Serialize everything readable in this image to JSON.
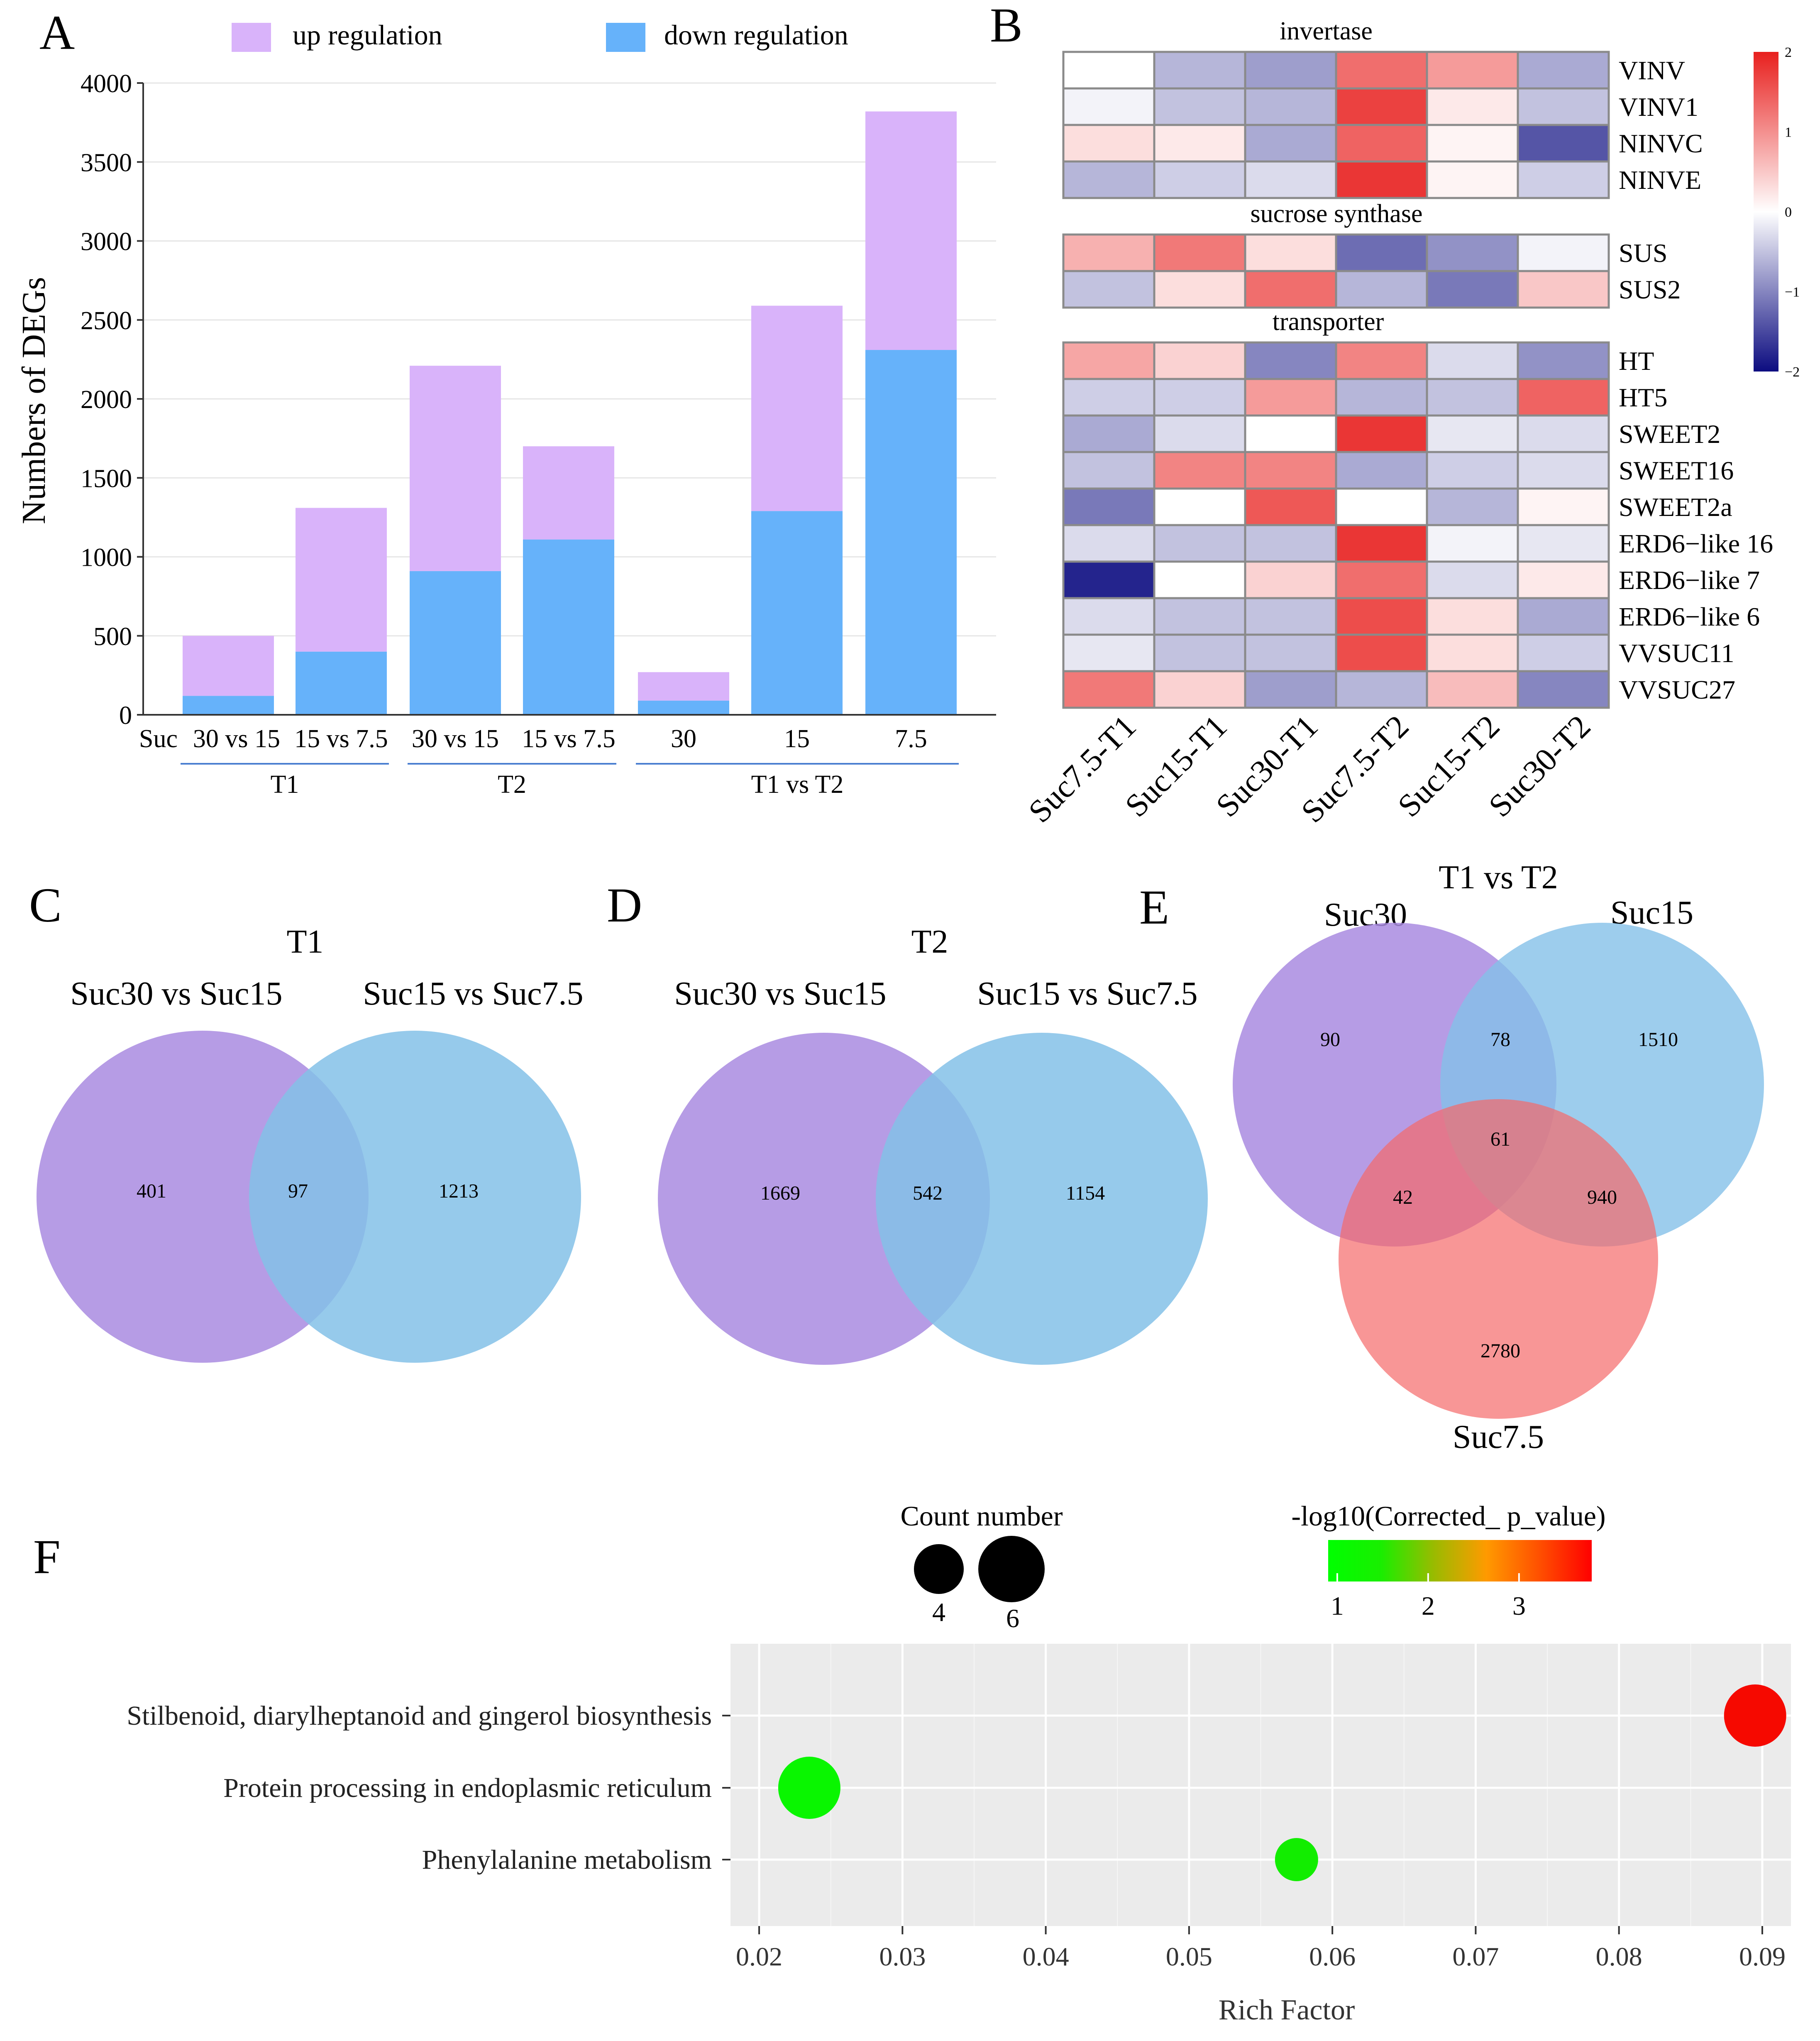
{
  "colors": {
    "up": "#d9b3fa",
    "down": "#66b2fa",
    "venn_purple": "#a98be0",
    "venn_blue": "#84c1e8",
    "venn_red": "#f56a6a",
    "heat_low": "#0c0c80",
    "heat_mid": "#ffffff",
    "heat_high": "#e8201e",
    "panel_bg": "#ebebeb",
    "low_sig": "#00ff00",
    "high_sig": "#ff0000"
  },
  "panels": {
    "a": "A",
    "b": "B",
    "c": "C",
    "d": "D",
    "e": "E",
    "f": "F"
  },
  "chart_data": [
    {
      "panel": "A",
      "type": "bar",
      "stacked": true,
      "ylabel": "Numbers of DEGs",
      "xlabel": "",
      "ylim": [
        0,
        4000
      ],
      "yticks": [
        "0",
        "500",
        "1000",
        "1500",
        "2000",
        "2500",
        "3000",
        "3500",
        "4000"
      ],
      "first_label_prefix": "Suc",
      "categories": [
        "30 vs 15",
        "15 vs 7.5",
        "30 vs 15",
        "15 vs 7.5",
        "30",
        "15",
        "7.5"
      ],
      "groups": [
        {
          "label": "T1",
          "from": 0,
          "to": 1
        },
        {
          "label": "T2",
          "from": 2,
          "to": 3
        },
        {
          "label": "T1 vs T2",
          "from": 4,
          "to": 6
        }
      ],
      "legend": [
        "up regulation",
        "down regulation"
      ],
      "series": [
        {
          "name": "down regulation",
          "values": [
            120,
            400,
            910,
            1110,
            90,
            1290,
            2310
          ]
        },
        {
          "name": "up regulation",
          "values": [
            380,
            910,
            1300,
            590,
            180,
            1300,
            1510
          ]
        }
      ]
    },
    {
      "panel": "B",
      "type": "heatmap",
      "columns": [
        "Suc7.5-T1",
        "Suc15-T1",
        "Suc30-T1",
        "Suc7.5-T2",
        "Suc15-T2",
        "Suc30-T2"
      ],
      "color_range": [
        -2,
        2
      ],
      "colorbar_ticks": [
        "2",
        "1",
        "0",
        "−1",
        "−2"
      ],
      "blocks": [
        {
          "title": "invertase",
          "rows": [
            {
              "gene": "VINV",
              "values": [
                0.0,
                -0.6,
                -0.8,
                1.3,
                0.9,
                -0.7
              ]
            },
            {
              "gene": "VINV1",
              "values": [
                -0.1,
                -0.5,
                -0.6,
                1.7,
                0.2,
                -0.5
              ]
            },
            {
              "gene": "NINVC",
              "values": [
                0.3,
                0.2,
                -0.7,
                1.4,
                0.1,
                -1.4
              ]
            },
            {
              "gene": "NINVE",
              "values": [
                -0.6,
                -0.4,
                -0.3,
                1.8,
                0.1,
                -0.4
              ]
            }
          ]
        },
        {
          "title": "sucrose synthase",
          "rows": [
            {
              "gene": "SUS",
              "values": [
                0.7,
                1.2,
                0.3,
                -1.2,
                -0.9,
                -0.1
              ]
            },
            {
              "gene": "SUS2",
              "values": [
                -0.5,
                0.3,
                1.3,
                -0.6,
                -1.1,
                0.5
              ]
            }
          ]
        },
        {
          "title": "transporter",
          "rows": [
            {
              "gene": "HT",
              "values": [
                0.8,
                0.4,
                -1.0,
                1.1,
                -0.3,
                -0.9
              ]
            },
            {
              "gene": "HT5",
              "values": [
                -0.4,
                -0.4,
                0.9,
                -0.6,
                -0.5,
                1.4
              ]
            },
            {
              "gene": "SWEET2",
              "values": [
                -0.7,
                -0.3,
                0.0,
                1.8,
                -0.2,
                -0.3
              ]
            },
            {
              "gene": "SWEET16",
              "values": [
                -0.5,
                1.1,
                1.1,
                -0.7,
                -0.4,
                -0.3
              ]
            },
            {
              "gene": "SWEET2a",
              "values": [
                -1.1,
                0.0,
                1.5,
                0.0,
                -0.6,
                0.1
              ]
            },
            {
              "gene": "ERD6−like 16",
              "values": [
                -0.3,
                -0.5,
                -0.5,
                1.8,
                -0.1,
                -0.2
              ]
            },
            {
              "gene": "ERD6−like 7",
              "values": [
                -1.8,
                0.0,
                0.4,
                1.3,
                -0.3,
                0.2
              ]
            },
            {
              "gene": "ERD6−like 6",
              "values": [
                -0.3,
                -0.5,
                -0.5,
                1.6,
                0.3,
                -0.7
              ]
            },
            {
              "gene": "VVSUC11",
              "values": [
                -0.2,
                -0.5,
                -0.5,
                1.6,
                0.3,
                -0.4
              ]
            },
            {
              "gene": "VVSUC27",
              "values": [
                1.2,
                0.4,
                -0.8,
                -0.6,
                0.6,
                -1.0
              ]
            }
          ]
        }
      ]
    },
    {
      "panel": "C",
      "type": "venn",
      "title": "T1",
      "sets": [
        "Suc30 vs Suc15",
        "Suc15 vs Suc7.5"
      ],
      "regions": {
        "only_first": 401,
        "shared": 97,
        "only_second": 1213
      }
    },
    {
      "panel": "D",
      "type": "venn",
      "title": "T2",
      "sets": [
        "Suc30 vs Suc15",
        "Suc15 vs Suc7.5"
      ],
      "regions": {
        "only_first": 1669,
        "shared": 542,
        "only_second": 1154
      }
    },
    {
      "panel": "E",
      "type": "venn",
      "title": "T1 vs T2",
      "sets": [
        "Suc30",
        "Suc15",
        "Suc7.5"
      ],
      "regions": {
        "a_only": 90,
        "ab": 78,
        "b_only": 1510,
        "abc": 61,
        "ac": 42,
        "bc": 940,
        "c_only": 2780
      }
    },
    {
      "panel": "F",
      "type": "scatter",
      "xlabel": "Rich Factor",
      "xlim": [
        0.018,
        0.092
      ],
      "xticks": [
        "0.02",
        "0.03",
        "0.04",
        "0.05",
        "0.06",
        "0.07",
        "0.08",
        "0.09"
      ],
      "size_legend_title": "Count number",
      "size_legend": [
        "4",
        "6"
      ],
      "color_legend_title": "-log10(Corrected_ p_value)",
      "color_legend_ticks": [
        "1",
        "2",
        "3"
      ],
      "color_range": [
        0.9,
        3.8
      ],
      "points": [
        {
          "term": "Stilbenoid, diarylheptanoid and gingerol biosynthesis",
          "rich_factor": 0.0895,
          "count": 6,
          "neg_log10_p": 3.7
        },
        {
          "term": "Protein processing in endoplasmic reticulum",
          "rich_factor": 0.0235,
          "count": 6,
          "neg_log10_p": 1.0
        },
        {
          "term": "Phenylalanine metabolism",
          "rich_factor": 0.0575,
          "count": 4,
          "neg_log10_p": 1.1
        }
      ]
    }
  ]
}
